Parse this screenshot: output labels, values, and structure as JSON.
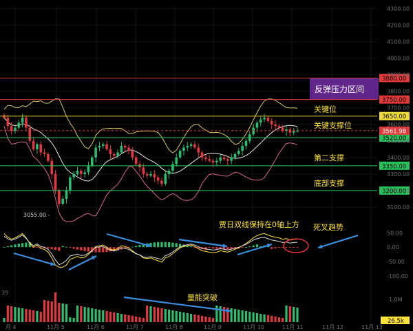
{
  "chart_data": [
    {
      "type": "candlestick",
      "name": "price",
      "y_ticks": [
        3100,
        3200,
        3300,
        3400,
        3500,
        3600,
        3700,
        3800,
        3900,
        4000,
        4100,
        4200,
        4300
      ],
      "y_tick_labels": [
        "3100.00",
        "3200.00",
        "3300.00",
        "3400.00",
        "3500.00",
        "3600.00",
        "3700.00",
        "3800.00",
        "3900.00",
        "4000.00",
        "4100.00",
        "4200.00",
        "4300.00"
      ],
      "ylim": [
        3000,
        4310
      ],
      "x_labels": [
        "月 4",
        "11月 5",
        "11月 6",
        "11月 7",
        "11月 8",
        "11月 9",
        "11月 10",
        "11月 11",
        "11月 12",
        "11月 13"
      ],
      "price_lines": [
        {
          "value": 3880,
          "label": "3880.00",
          "color": "#e03a3a"
        },
        {
          "value": 3750,
          "label": "3750.00",
          "color": "#e03a3a"
        },
        {
          "value": 3650,
          "label": "3650.00",
          "color": "#f0dc3c"
        },
        {
          "value": 3520,
          "label": "3520.00",
          "color": "#27c25c"
        },
        {
          "value": 3350,
          "label": "3350.00",
          "color": "#27c25c"
        },
        {
          "value": 3200,
          "label": "3200.00",
          "color": "#27c25c"
        }
      ],
      "current_price": {
        "value": 3561.98,
        "label": "3561.98",
        "color": "#e03a3a"
      },
      "low_marker": {
        "value": 3055,
        "label": "3055.00"
      },
      "annotations": {
        "resistance_zone": "反弹压力区间",
        "key_level": "关键位",
        "key_support": "关键支撑位",
        "second_support": "第二支撑",
        "bottom_support": "底部支撑"
      },
      "closes": [
        3640,
        3590,
        3560,
        3580,
        3610,
        3640,
        3580,
        3500,
        3450,
        3480,
        3430,
        3420,
        3380,
        3300,
        3200,
        3120,
        3150,
        3200,
        3280,
        3300,
        3320,
        3300,
        3310,
        3350,
        3400,
        3460,
        3470,
        3480,
        3450,
        3420,
        3410,
        3430,
        3470,
        3460,
        3440,
        3400,
        3360,
        3340,
        3300,
        3290,
        3300,
        3280,
        3260,
        3240,
        3300,
        3320,
        3360,
        3400,
        3440,
        3460,
        3470,
        3480,
        3460,
        3430,
        3400,
        3390,
        3380,
        3370,
        3380,
        3400,
        3390,
        3380,
        3400,
        3420,
        3440,
        3470,
        3500,
        3540,
        3580,
        3610,
        3630,
        3640,
        3620,
        3600,
        3590,
        3580,
        3560,
        3570,
        3550,
        3560,
        3562
      ]
    },
    {
      "type": "macd",
      "name": "indicator",
      "y_ticks": [
        50,
        0,
        -50,
        -100
      ],
      "y_tick_labels": [
        "50.00",
        "0.00",
        "-50.00",
        "-100.00"
      ],
      "ylim": [
        -110,
        70
      ],
      "annotations": {
        "main": "贾日双线保持在0轴上方",
        "death_cross": "死叉趋势"
      }
    },
    {
      "type": "volume",
      "name": "volume",
      "period_label": "39",
      "y_ticks": [
        "1.0M"
      ],
      "current_label": "26.5k",
      "annotations": {
        "breakout": "量能突破"
      }
    }
  ],
  "colors": {
    "up": "#2dbd6e",
    "down": "#e3383f",
    "background": "#000000",
    "axis_text": "#6f6f6f",
    "zone": "#6a2a9a",
    "annotation": "#ffe23a",
    "arrow": "#3a8ee0"
  }
}
